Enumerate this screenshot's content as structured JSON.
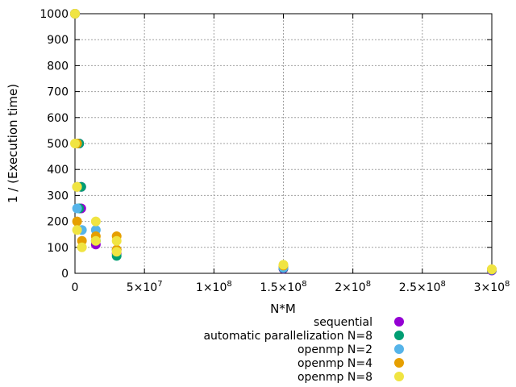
{
  "chart_data": {
    "type": "scatter",
    "title": "",
    "xlabel": "N*M",
    "ylabel": "1 / (Execution time)",
    "xlim": [
      0,
      300000000
    ],
    "ylim": [
      0,
      1000
    ],
    "grid": true,
    "legend_position": "below",
    "x_ticks": [
      {
        "value": 0,
        "label": "0"
      },
      {
        "value": 50000000,
        "label": "5×10",
        "exp": "7"
      },
      {
        "value": 100000000,
        "label": "1×10",
        "exp": "8"
      },
      {
        "value": 150000000,
        "label": "1.5×10",
        "exp": "8"
      },
      {
        "value": 200000000,
        "label": "2×10",
        "exp": "8"
      },
      {
        "value": 250000000,
        "label": "2.5×10",
        "exp": "8"
      },
      {
        "value": 300000000,
        "label": "3×10",
        "exp": "8"
      }
    ],
    "y_ticks": [
      0,
      100,
      200,
      300,
      400,
      500,
      600,
      700,
      800,
      900,
      1000
    ],
    "series": [
      {
        "name": "sequential",
        "color": "#9400d3",
        "points": [
          [
            0,
            1000
          ],
          [
            3000000,
            500
          ],
          [
            4500000,
            333
          ],
          [
            4500000,
            250
          ],
          [
            15000000,
            111
          ],
          [
            30000000,
            76
          ],
          [
            150000000,
            18
          ],
          [
            300000000,
            11
          ]
        ]
      },
      {
        "name": "automatic parallelization N=8",
        "color": "#009e73",
        "points": [
          [
            0,
            1000
          ],
          [
            3000000,
            500
          ],
          [
            4500000,
            333
          ],
          [
            3000000,
            250
          ],
          [
            15000000,
            125
          ],
          [
            30000000,
            67
          ],
          [
            150000000,
            20
          ],
          [
            300000000,
            13
          ]
        ]
      },
      {
        "name": "openmp N=2",
        "color": "#56b4e9",
        "points": [
          [
            0,
            1000
          ],
          [
            1500000,
            500
          ],
          [
            1500000,
            333
          ],
          [
            1500000,
            250
          ],
          [
            5000000,
            167
          ],
          [
            15000000,
            167
          ],
          [
            30000000,
            91
          ],
          [
            150000000,
            22
          ],
          [
            300000000,
            14
          ]
        ]
      },
      {
        "name": "openmp N=4",
        "color": "#e69f00",
        "points": [
          [
            0,
            1000
          ],
          [
            1500000,
            500
          ],
          [
            1500000,
            333
          ],
          [
            1500000,
            200
          ],
          [
            5000000,
            125
          ],
          [
            15000000,
            143
          ],
          [
            30000000,
            143
          ],
          [
            30000000,
            91
          ],
          [
            150000000,
            30
          ],
          [
            300000000,
            15
          ]
        ]
      },
      {
        "name": "openmp N=8",
        "color": "#f0e442",
        "points": [
          [
            0,
            1000
          ],
          [
            0,
            500
          ],
          [
            1500000,
            333
          ],
          [
            1500000,
            167
          ],
          [
            5000000,
            100
          ],
          [
            15000000,
            200
          ],
          [
            15000000,
            125
          ],
          [
            30000000,
            125
          ],
          [
            30000000,
            83
          ],
          [
            150000000,
            33
          ],
          [
            300000000,
            16
          ]
        ]
      }
    ]
  }
}
